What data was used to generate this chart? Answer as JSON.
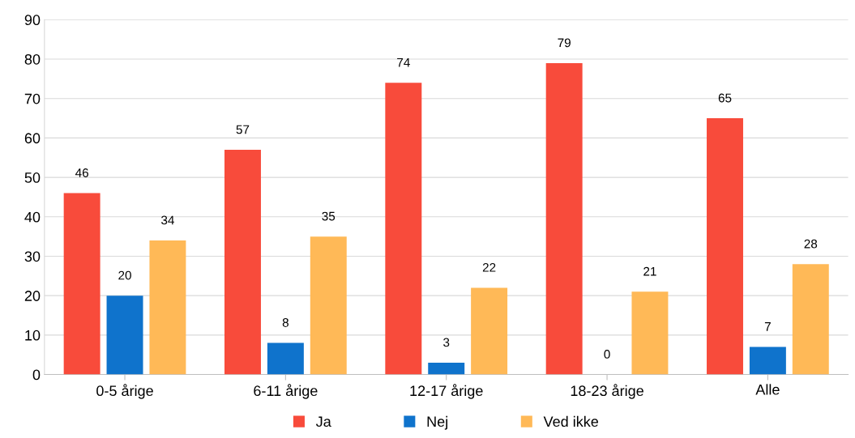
{
  "chart_data": {
    "type": "bar",
    "categories": [
      "0-5 årige",
      "6-11 årige",
      "12-17 årige",
      "18-23 årige",
      "Alle"
    ],
    "series": [
      {
        "name": "Ja",
        "color": "#f84b3b",
        "values": [
          46,
          57,
          74,
          79,
          65
        ]
      },
      {
        "name": "Nej",
        "color": "#0f73cc",
        "values": [
          20,
          8,
          3,
          0,
          7
        ]
      },
      {
        "name": "Ved ikke",
        "color": "#ffb957",
        "values": [
          34,
          35,
          22,
          21,
          28
        ]
      }
    ],
    "ylim": [
      0,
      90
    ],
    "yticks": [
      0,
      10,
      20,
      30,
      40,
      50,
      60,
      70,
      80,
      90
    ],
    "grid": "y",
    "legend": "bottom",
    "data_labels": true
  }
}
